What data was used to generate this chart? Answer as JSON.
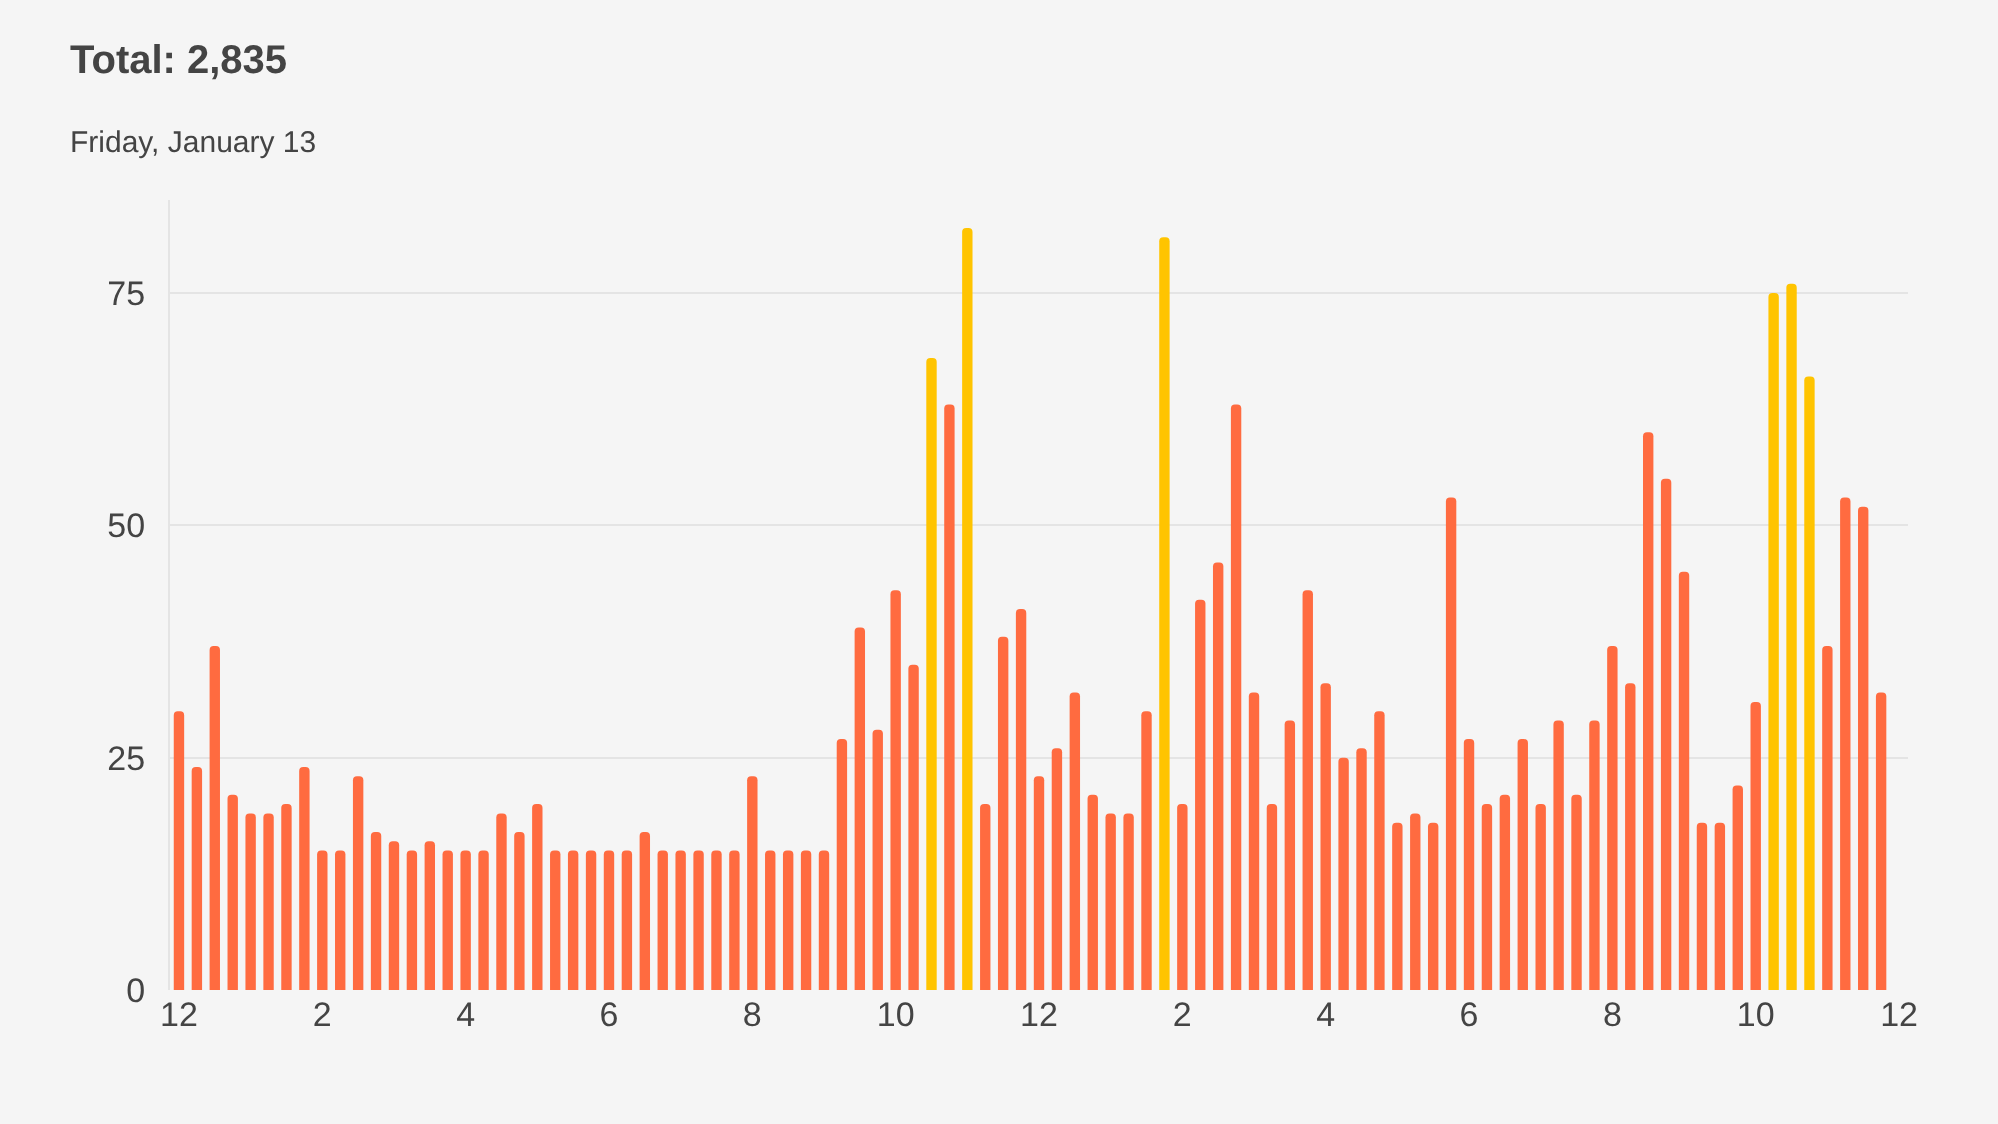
{
  "chart_data": {
    "type": "bar",
    "title": "Total: 2,835",
    "subtitle": "Friday, January 13",
    "categories": [
      "12",
      null,
      null,
      null,
      null,
      null,
      null,
      null,
      "2",
      null,
      null,
      null,
      null,
      null,
      null,
      null,
      "4",
      null,
      null,
      null,
      null,
      null,
      null,
      null,
      "6",
      null,
      null,
      null,
      null,
      null,
      null,
      null,
      "8",
      null,
      null,
      null,
      null,
      null,
      null,
      null,
      "10",
      null,
      null,
      null,
      null,
      null,
      null,
      null,
      "12",
      null,
      null,
      null,
      null,
      null,
      null,
      null,
      "2",
      null,
      null,
      null,
      null,
      null,
      null,
      null,
      "4",
      null,
      null,
      null,
      null,
      null,
      null,
      null,
      "6",
      null,
      null,
      null,
      null,
      null,
      null,
      null,
      "8",
      null,
      null,
      null,
      null,
      null,
      null,
      null,
      "10",
      null,
      null,
      null,
      null,
      null,
      null,
      null,
      "12"
    ],
    "values": [
      30,
      24,
      37,
      21,
      19,
      19,
      20,
      24,
      15,
      15,
      23,
      17,
      16,
      15,
      16,
      15,
      15,
      15,
      19,
      17,
      20,
      15,
      15,
      15,
      15,
      15,
      17,
      15,
      15,
      15,
      15,
      15,
      23,
      15,
      15,
      15,
      15,
      27,
      39,
      28,
      43,
      35,
      68,
      63,
      82,
      20,
      38,
      41,
      23,
      26,
      32,
      21,
      19,
      19,
      30,
      81,
      20,
      42,
      46,
      63,
      32,
      20,
      29,
      43,
      33,
      25,
      26,
      30,
      18,
      19,
      18,
      53,
      27,
      20,
      21,
      27,
      20,
      29,
      21,
      29,
      37,
      33,
      60,
      55,
      45,
      18,
      18,
      22,
      31,
      75,
      76,
      66,
      37,
      53,
      52,
      32,
      null
    ],
    "colors": [
      "#ff6b40",
      "#ff6b40",
      "#ff6b40",
      "#ff6b40",
      "#ff6b40",
      "#ff6b40",
      "#ff6b40",
      "#ff6b40",
      "#ff6b40",
      "#ff6b40",
      "#ff6b40",
      "#ff6b40",
      "#ff6b40",
      "#ff6b40",
      "#ff6b40",
      "#ff6b40",
      "#ff6b40",
      "#ff6b40",
      "#ff6b40",
      "#ff6b40",
      "#ff6b40",
      "#ff6b40",
      "#ff6b40",
      "#ff6b40",
      "#ff6b40",
      "#ff6b40",
      "#ff6b40",
      "#ff6b40",
      "#ff6b40",
      "#ff6b40",
      "#ff6b40",
      "#ff6b40",
      "#ff6b40",
      "#ff6b40",
      "#ff6b40",
      "#ff6b40",
      "#ff6b40",
      "#ff6b40",
      "#ff6b40",
      "#ff6b40",
      "#ff6b40",
      "#ff6b40",
      "#ffc400",
      "#ff6b40",
      "#ffc400",
      "#ff6b40",
      "#ff6b40",
      "#ff6b40",
      "#ff6b40",
      "#ff6b40",
      "#ff6b40",
      "#ff6b40",
      "#ff6b40",
      "#ff6b40",
      "#ff6b40",
      "#ffc400",
      "#ff6b40",
      "#ff6b40",
      "#ff6b40",
      "#ff6b40",
      "#ff6b40",
      "#ff6b40",
      "#ff6b40",
      "#ff6b40",
      "#ff6b40",
      "#ff6b40",
      "#ff6b40",
      "#ff6b40",
      "#ff6b40",
      "#ff6b40",
      "#ff6b40",
      "#ff6b40",
      "#ff6b40",
      "#ff6b40",
      "#ff6b40",
      "#ff6b40",
      "#ff6b40",
      "#ff6b40",
      "#ff6b40",
      "#ff6b40",
      "#ff6b40",
      "#ff6b40",
      "#ff6b40",
      "#ff6b40",
      "#ff6b40",
      "#ff6b40",
      "#ff6b40",
      "#ff6b40",
      "#ff6b40",
      "#ffc400",
      "#ffc400",
      "#ffc400",
      "#ff6b40",
      "#ff6b40",
      "#ff6b40",
      "#ff6b40",
      "#ff6b40"
    ],
    "ylim": [
      0,
      85
    ],
    "yticks": [
      0,
      25,
      50,
      75
    ],
    "grid": "y"
  }
}
